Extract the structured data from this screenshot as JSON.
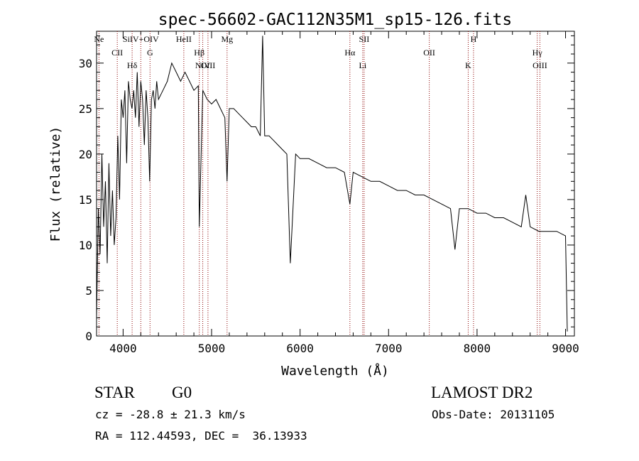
{
  "chart_data": {
    "type": "line",
    "title": "spec-56602-GAC112N35M1_sp15-126.fits",
    "xlabel": "Wavelength (Å)",
    "ylabel": "Flux (relative)",
    "xlim": [
      3700,
      9100
    ],
    "ylim": [
      0,
      33.5
    ],
    "x_ticks": [
      4000,
      5000,
      6000,
      7000,
      8000,
      9000
    ],
    "y_ticks": [
      0,
      5,
      10,
      15,
      20,
      25,
      30
    ],
    "grid": false,
    "series": [
      {
        "x": [
          3700,
          3720,
          3740,
          3760,
          3780,
          3800,
          3820,
          3840,
          3860,
          3880,
          3900,
          3920,
          3940,
          3960,
          3980,
          4000,
          4020,
          4040,
          4060,
          4080,
          4100,
          4120,
          4140,
          4160,
          4180,
          4200,
          4220,
          4240,
          4260,
          4280,
          4300,
          4320,
          4340,
          4360,
          4380,
          4400,
          4450,
          4500,
          4550,
          4600,
          4650,
          4700,
          4750,
          4800,
          4850,
          4861,
          4900,
          4950,
          5000,
          5050,
          5100,
          5150,
          5175,
          5200,
          5250,
          5300,
          5350,
          5400,
          5450,
          5500,
          5550,
          5577,
          5600,
          5650,
          5700,
          5750,
          5800,
          5850,
          5890,
          5950,
          6000,
          6100,
          6200,
          6300,
          6400,
          6500,
          6563,
          6600,
          6700,
          6800,
          6900,
          7000,
          7100,
          7200,
          7300,
          7400,
          7500,
          7600,
          7700,
          7750,
          7800,
          7900,
          8000,
          8100,
          8200,
          8300,
          8400,
          8500,
          8550,
          8600,
          8700,
          8800,
          8900,
          9000,
          9020
        ],
        "y": [
          2,
          14,
          9,
          20,
          12,
          17,
          8,
          19,
          11,
          16,
          10,
          13,
          22,
          15,
          26,
          24,
          27,
          19,
          28,
          26,
          25,
          27,
          24,
          29,
          23,
          28,
          26,
          21,
          27,
          24,
          17,
          26,
          27,
          25,
          28,
          26,
          27,
          28,
          30,
          29,
          28,
          29,
          28,
          27,
          27.5,
          12,
          27,
          26,
          25.5,
          26,
          25,
          24,
          17,
          25,
          25,
          24.5,
          24,
          23.5,
          23,
          23,
          22,
          33,
          22,
          22,
          21.5,
          21,
          20.5,
          20,
          8,
          20,
          19.5,
          19.5,
          19,
          18.5,
          18.5,
          18,
          14.5,
          18,
          17.5,
          17,
          17,
          16.5,
          16,
          16,
          15.5,
          15.5,
          15,
          14.5,
          14,
          9.5,
          14,
          14,
          13.5,
          13.5,
          13,
          13,
          12.5,
          12,
          15.5,
          12,
          11.5,
          11.5,
          11.5,
          11,
          0.5
        ]
      }
    ],
    "lines": [
      {
        "label": "Ne",
        "x": 3727
      },
      {
        "label": "CII",
        "x": 3934
      },
      {
        "label": "Hδ",
        "x": 4102
      },
      {
        "label": "SiIV+OIV",
        "x": 4200
      },
      {
        "label": "G",
        "x": 4304
      },
      {
        "label": "OIII",
        "x": 4959
      },
      {
        "label": "HeII",
        "x": 4686
      },
      {
        "label": "Hβ",
        "x": 4861
      },
      {
        "label": "NIV",
        "x": 4900
      },
      {
        "label": "Mg",
        "x": 5175
      },
      {
        "label": "Hα",
        "x": 6563
      },
      {
        "label": "Li",
        "x": 6708
      },
      {
        "label": "SII",
        "x": 6724
      },
      {
        "label": "OII",
        "x": 7460
      },
      {
        "label": "K",
        "x": 7900
      },
      {
        "label": "H",
        "x": 7960
      },
      {
        "label": "Hγ",
        "x": 8680
      },
      {
        "label": "OIII",
        "x": 8710
      }
    ]
  },
  "info": {
    "class": "STAR",
    "subclass": "G0",
    "survey": "LAMOST DR2",
    "cz": "cz = -28.8 ± 21.3 km/s",
    "obs_date": "Obs-Date: 20131105",
    "radec": "RA = 112.44593, DEC =  36.13933"
  }
}
